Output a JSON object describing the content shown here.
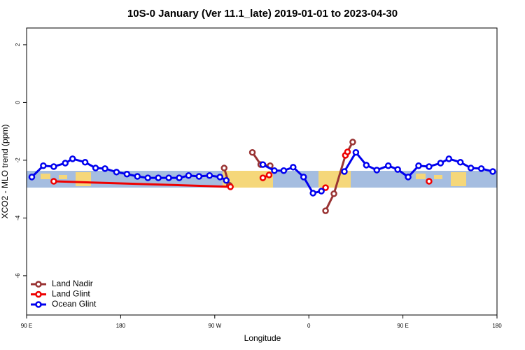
{
  "chart_data": {
    "type": "line",
    "title": "10S-0 January (Ver 11.1_late)   2019-01-01 to 2023-04-30",
    "x_label": "Longitude",
    "y_label": "XCO2 - MLO trend (ppm)",
    "xlim": [
      90,
      540
    ],
    "xticks": [
      {
        "value": 90,
        "label": "90 E"
      },
      180,
      {
        "value": 270,
        "label": "90 W"
      },
      {
        "value": 360,
        "label": "0"
      },
      {
        "value": 450,
        "label": "90 E"
      },
      {
        "value": 540,
        "label": "180"
      }
    ],
    "ylim": [
      -7.36,
      2.58
    ],
    "yticks": [
      2,
      0,
      -2,
      -4,
      -6
    ],
    "legend": "bottom-left",
    "series": [
      {
        "name": "Land Nadir",
        "color": "#993333",
        "x": [
          279,
          284,
          null,
          306,
          314,
          323,
          null,
          376,
          384,
          395,
          402
        ],
        "values": [
          -2.27,
          -2.87,
          null,
          -1.73,
          -2.15,
          -2.19,
          null,
          -3.75,
          -3.16,
          -1.83,
          -1.37
        ]
      },
      {
        "name": "Land Glint",
        "color": "#ee0000",
        "x": [
          116,
          285,
          null,
          316,
          322,
          null,
          376,
          null,
          395,
          397,
          null,
          475
        ],
        "values": [
          -2.73,
          -2.92,
          null,
          -2.61,
          -2.51,
          null,
          -2.95,
          null,
          -1.83,
          -1.71,
          null,
          -2.73
        ]
      },
      {
        "name": "Ocean Glint",
        "color": "#0000ee",
        "x": [
          95,
          106,
          116,
          127,
          134,
          146,
          156,
          165,
          176,
          186,
          196,
          206,
          216,
          226,
          236,
          245,
          255,
          265,
          275,
          281,
          null,
          316,
          327,
          336,
          345,
          355,
          364,
          372,
          null,
          394,
          405,
          415,
          425,
          436,
          445,
          455,
          465,
          475,
          486,
          494,
          505,
          515,
          525,
          536
        ],
        "values": [
          -2.58,
          -2.19,
          -2.22,
          -2.1,
          -1.95,
          -2.07,
          -2.27,
          -2.29,
          -2.41,
          -2.48,
          -2.56,
          -2.61,
          -2.61,
          -2.61,
          -2.61,
          -2.53,
          -2.56,
          -2.53,
          -2.58,
          -2.7,
          null,
          -2.15,
          -2.36,
          -2.36,
          -2.24,
          -2.58,
          -3.14,
          -3.07,
          null,
          -2.39,
          -1.73,
          -2.17,
          -2.34,
          -2.19,
          -2.32,
          -2.58,
          -2.19,
          -2.22,
          -2.1,
          -1.95,
          -2.07,
          -2.27,
          -2.29,
          -2.39
        ]
      }
    ]
  }
}
